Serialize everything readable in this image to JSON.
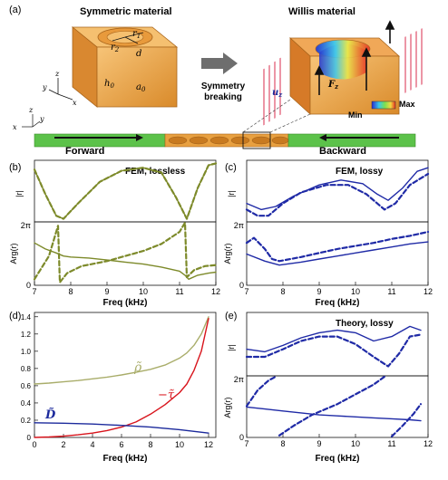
{
  "figure": {
    "panel_labels": [
      "(a)",
      "(b)",
      "(c)",
      "(d)",
      "(e)"
    ],
    "panel_a": {
      "left_title": "Symmetric material",
      "right_title": "Willis material",
      "arrow_text_1": "Symmetry",
      "arrow_text_2": "breaking",
      "dims": {
        "r1": "r",
        "r1_sub": "1",
        "r2": "r",
        "r2_sub": "2",
        "d": "d",
        "h0": "h",
        "h0_sub": "0",
        "a0": "a",
        "a0_sub": "0"
      },
      "axes": {
        "z": "z",
        "x": "x",
        "y": "y"
      },
      "willis_labels": {
        "uz": "u",
        "uz_sub": "z",
        "Fz": "F",
        "Fz_sub": "z"
      },
      "colorbar": {
        "max": "Max",
        "min": "Min"
      },
      "waveguide": {
        "forward": "Forward",
        "backward": "Backward"
      }
    },
    "panel_b": {
      "title": "FEM, lossless",
      "ylabel_top": "|r|",
      "ylabel_bottom": "Arg(r)",
      "ytick_2pi": "2π",
      "ytick_0": "0",
      "xlabel": "Freq (kHz)",
      "xticks": [
        "7",
        "8",
        "9",
        "10",
        "11",
        "12"
      ]
    },
    "panel_c": {
      "title": "FEM, lossy",
      "ylabel_top": "|r|",
      "ylabel_bottom": "Arg(r)",
      "ytick_2pi": "2π",
      "ytick_0": "0",
      "xlabel": "Freq (kHz)",
      "xticks": [
        "7",
        "8",
        "9",
        "10",
        "11",
        "12"
      ]
    },
    "panel_d": {
      "xlabel": "Freq (kHz)",
      "xticks": [
        "0",
        "2",
        "4",
        "6",
        "8",
        "10",
        "12"
      ],
      "yticks": [
        "0",
        "0.2",
        "0.4",
        "0.6",
        "0.8",
        "1.0",
        "1.2",
        "1.4"
      ],
      "label_rho": "ρ̃",
      "label_tau": "−τ̃",
      "label_D": "D̃"
    },
    "panel_e": {
      "title": "Theory, lossy",
      "ylabel_top": "|r|",
      "ylabel_bottom": "Arg(r)",
      "ytick_2pi": "2π",
      "ytick_0": "0",
      "xlabel": "Freq (kHz)",
      "xticks": [
        "7",
        "8",
        "9",
        "10",
        "11",
        "12"
      ]
    },
    "colors": {
      "olive": "#7d8a2a",
      "blue": "#1f2aa6",
      "red": "#d8141c",
      "tan": "#a9ad6a",
      "navy": "#1c2a9c",
      "orange": "#e8a040",
      "green": "#5cc24a"
    }
  },
  "chart_data": [
    {
      "type": "line",
      "panel": "b-top",
      "title": "FEM, lossless",
      "ylabel": "|r|",
      "xlabel": "",
      "xlim": [
        7,
        12
      ],
      "ylim": [
        0,
        1
      ],
      "series": [
        {
          "style": "solid",
          "x": [
            7.0,
            7.3,
            7.6,
            7.8,
            8.2,
            8.8,
            9.4,
            10.0,
            10.5,
            10.9,
            11.2,
            11.5,
            11.8,
            12.0
          ],
          "y": [
            0.85,
            0.45,
            0.1,
            0.05,
            0.3,
            0.65,
            0.83,
            0.88,
            0.8,
            0.4,
            0.05,
            0.55,
            0.92,
            0.95
          ]
        },
        {
          "style": "dashed",
          "x": [
            7.0,
            7.3,
            7.6,
            7.8,
            8.2,
            8.8,
            9.4,
            10.0,
            10.5,
            10.9,
            11.2,
            11.5,
            11.8,
            12.0
          ],
          "y": [
            0.85,
            0.45,
            0.1,
            0.05,
            0.3,
            0.65,
            0.83,
            0.88,
            0.8,
            0.4,
            0.05,
            0.55,
            0.92,
            0.95
          ]
        }
      ]
    },
    {
      "type": "line",
      "panel": "b-bottom",
      "ylabel": "Arg(r)",
      "xlabel": "Freq (kHz)",
      "xlim": [
        7,
        12
      ],
      "ylim": [
        0,
        6.283
      ],
      "series": [
        {
          "style": "solid",
          "x": [
            7.0,
            7.3,
            7.6,
            7.8,
            8.0,
            8.5,
            9.0,
            9.5,
            10.0,
            10.5,
            11.0,
            11.15,
            11.25,
            11.5,
            11.8,
            12.0
          ],
          "y": [
            4.2,
            3.6,
            3.2,
            2.9,
            2.8,
            2.7,
            2.5,
            2.3,
            2.1,
            1.8,
            1.4,
            1.0,
            0.6,
            1.0,
            1.2,
            1.3
          ]
        },
        {
          "style": "dashed",
          "x": [
            7.0,
            7.4,
            7.65,
            7.7,
            7.9,
            8.3,
            9.0,
            9.5,
            10.0,
            10.5,
            11.0,
            11.15,
            11.2,
            11.4,
            11.7,
            12.0
          ],
          "y": [
            0.6,
            2.9,
            5.9,
            0.3,
            1.2,
            1.9,
            2.4,
            2.9,
            3.4,
            4.1,
            5.3,
            6.2,
            0.8,
            1.5,
            1.9,
            2.0
          ]
        }
      ]
    },
    {
      "type": "line",
      "panel": "c-top",
      "title": "FEM, lossy",
      "ylabel": "|r|",
      "xlabel": "",
      "xlim": [
        7,
        12
      ],
      "ylim": [
        0,
        1
      ],
      "series": [
        {
          "style": "solid",
          "x": [
            7.0,
            7.4,
            7.8,
            8.3,
            9.0,
            9.6,
            10.2,
            10.6,
            10.9,
            11.3,
            11.7,
            12.0
          ],
          "y": [
            0.3,
            0.2,
            0.25,
            0.42,
            0.6,
            0.68,
            0.62,
            0.45,
            0.35,
            0.55,
            0.82,
            0.88
          ]
        },
        {
          "style": "dashed",
          "x": [
            7.0,
            7.3,
            7.6,
            8.0,
            8.5,
            9.2,
            9.8,
            10.3,
            10.8,
            11.1,
            11.5,
            12.0
          ],
          "y": [
            0.2,
            0.1,
            0.1,
            0.3,
            0.48,
            0.6,
            0.6,
            0.45,
            0.2,
            0.3,
            0.6,
            0.78
          ]
        }
      ]
    },
    {
      "type": "line",
      "panel": "c-bottom",
      "ylabel": "Arg(r)",
      "xlabel": "Freq (kHz)",
      "xlim": [
        7,
        12
      ],
      "ylim": [
        0,
        6.283
      ],
      "series": [
        {
          "style": "solid",
          "x": [
            7.0,
            7.5,
            7.9,
            8.5,
            9.0,
            9.5,
            10.0,
            10.5,
            11.0,
            11.5,
            12.0
          ],
          "y": [
            3.1,
            2.4,
            2.0,
            2.3,
            2.6,
            2.9,
            3.2,
            3.5,
            3.8,
            4.1,
            4.3
          ]
        },
        {
          "style": "dashed",
          "x": [
            7.0,
            7.2,
            7.5,
            7.7,
            7.9,
            8.5,
            9.0,
            9.5,
            10.0,
            10.5,
            11.0,
            11.5,
            12.0
          ],
          "y": [
            4.2,
            4.7,
            3.6,
            2.6,
            2.4,
            2.8,
            3.2,
            3.6,
            3.9,
            4.2,
            4.6,
            4.9,
            5.3
          ]
        }
      ]
    },
    {
      "type": "line",
      "panel": "d",
      "xlabel": "Freq (kHz)",
      "xlim": [
        0,
        12.5
      ],
      "ylim": [
        0,
        1.45
      ],
      "series": [
        {
          "name": "ρ̃",
          "x": [
            0,
            1,
            2,
            3,
            4,
            5,
            6,
            7,
            8,
            9,
            10,
            10.5,
            11,
            11.5,
            12
          ],
          "y": [
            0.62,
            0.63,
            0.645,
            0.66,
            0.68,
            0.7,
            0.725,
            0.755,
            0.79,
            0.84,
            0.92,
            0.98,
            1.07,
            1.2,
            1.4
          ]
        },
        {
          "name": "−τ̃",
          "x": [
            0,
            1,
            2,
            3,
            4,
            5,
            6,
            7,
            8,
            9,
            10,
            10.5,
            11,
            11.5,
            12
          ],
          "y": [
            0.0,
            0.005,
            0.015,
            0.03,
            0.05,
            0.08,
            0.12,
            0.18,
            0.27,
            0.38,
            0.52,
            0.62,
            0.78,
            1.0,
            1.38
          ]
        },
        {
          "name": "D̃",
          "x": [
            0,
            2,
            4,
            6,
            8,
            10,
            11,
            12
          ],
          "y": [
            0.17,
            0.165,
            0.155,
            0.14,
            0.12,
            0.09,
            0.07,
            0.05
          ]
        }
      ]
    },
    {
      "type": "line",
      "panel": "e-top",
      "title": "Theory, lossy",
      "ylabel": "|r|",
      "xlabel": "",
      "xlim": [
        7,
        12
      ],
      "ylim": [
        0,
        1
      ],
      "series": [
        {
          "style": "solid",
          "x": [
            7.0,
            7.5,
            8.0,
            8.5,
            9.0,
            9.5,
            10.0,
            10.5,
            11.0,
            11.5,
            11.8
          ],
          "y": [
            0.42,
            0.38,
            0.48,
            0.6,
            0.68,
            0.72,
            0.68,
            0.55,
            0.62,
            0.78,
            0.72
          ]
        },
        {
          "style": "dashed",
          "x": [
            7.0,
            7.5,
            8.0,
            8.5,
            9.0,
            9.5,
            10.0,
            10.5,
            10.9,
            11.2,
            11.5,
            11.8
          ],
          "y": [
            0.3,
            0.3,
            0.42,
            0.55,
            0.62,
            0.62,
            0.5,
            0.3,
            0.15,
            0.35,
            0.62,
            0.65
          ]
        }
      ]
    },
    {
      "type": "line",
      "panel": "e-bottom",
      "ylabel": "Arg(r)",
      "xlabel": "Freq (kHz)",
      "xlim": [
        7,
        12
      ],
      "ylim": [
        0,
        6.283
      ],
      "series": [
        {
          "style": "solid",
          "x": [
            7.0,
            7.5,
            8.0,
            8.5,
            9.0,
            9.5,
            10.0,
            10.5,
            11.0,
            11.5,
            11.8
          ],
          "y": [
            3.1,
            2.9,
            2.7,
            2.5,
            2.3,
            2.2,
            2.1,
            2.0,
            1.9,
            1.8,
            1.7
          ]
        },
        {
          "style": "dashed",
          "x": [
            7.0,
            7.3,
            7.6,
            7.8
          ],
          "y": [
            3.2,
            4.8,
            5.8,
            6.2
          ]
        },
        {
          "style": "dashed",
          "x": [
            7.9,
            8.3,
            8.8,
            9.5,
            10.0,
            10.5,
            10.8
          ],
          "y": [
            0.2,
            1.2,
            2.3,
            3.4,
            4.4,
            5.4,
            6.2
          ]
        },
        {
          "style": "dashed",
          "x": [
            11.0,
            11.3,
            11.6,
            11.8
          ],
          "y": [
            0.1,
            1.2,
            2.4,
            3.4
          ]
        }
      ]
    }
  ]
}
